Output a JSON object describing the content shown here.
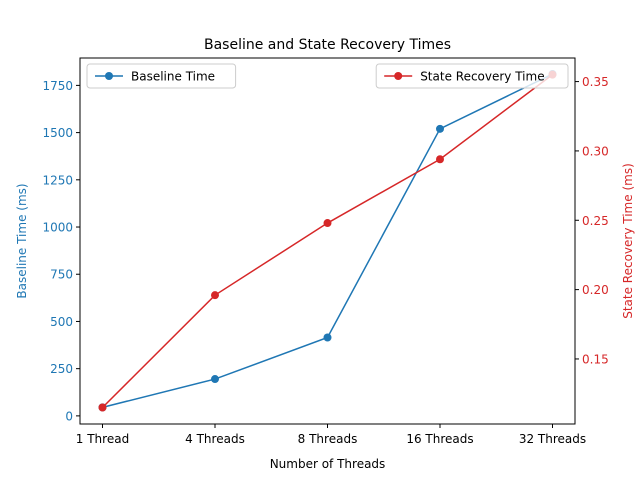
{
  "chart_data": {
    "type": "line",
    "title": "Baseline and State Recovery Times",
    "xlabel": "Number of Threads",
    "categories": [
      "1 Thread",
      "4 Threads",
      "8 Threads",
      "16 Threads",
      "32 Threads"
    ],
    "left_axis": {
      "label": "Baseline Time (ms)",
      "color": "#1f77b4",
      "ylim": [
        -43,
        1895
      ],
      "ticks": [
        0,
        250,
        500,
        750,
        1000,
        1250,
        1500,
        1750
      ]
    },
    "right_axis": {
      "label": "State Recovery Time (ms)",
      "color": "#d62728",
      "ylim": [
        0.1031,
        0.367
      ],
      "ticks": [
        0.15,
        0.2,
        0.25,
        0.3,
        0.35
      ],
      "tick_labels": [
        "0.15",
        "0.20",
        "0.25",
        "0.30",
        "0.35"
      ]
    },
    "series": [
      {
        "name": "Baseline Time",
        "axis": "left",
        "color": "#1f77b4",
        "values": [
          45,
          195,
          415,
          1520,
          1810
        ]
      },
      {
        "name": "State Recovery Time",
        "axis": "right",
        "color": "#d62728",
        "values": [
          0.115,
          0.196,
          0.248,
          0.294,
          0.355
        ]
      }
    ],
    "legends": [
      {
        "series": 0,
        "placement": "upper-left"
      },
      {
        "series": 1,
        "placement": "upper-right"
      }
    ],
    "grid": false
  }
}
